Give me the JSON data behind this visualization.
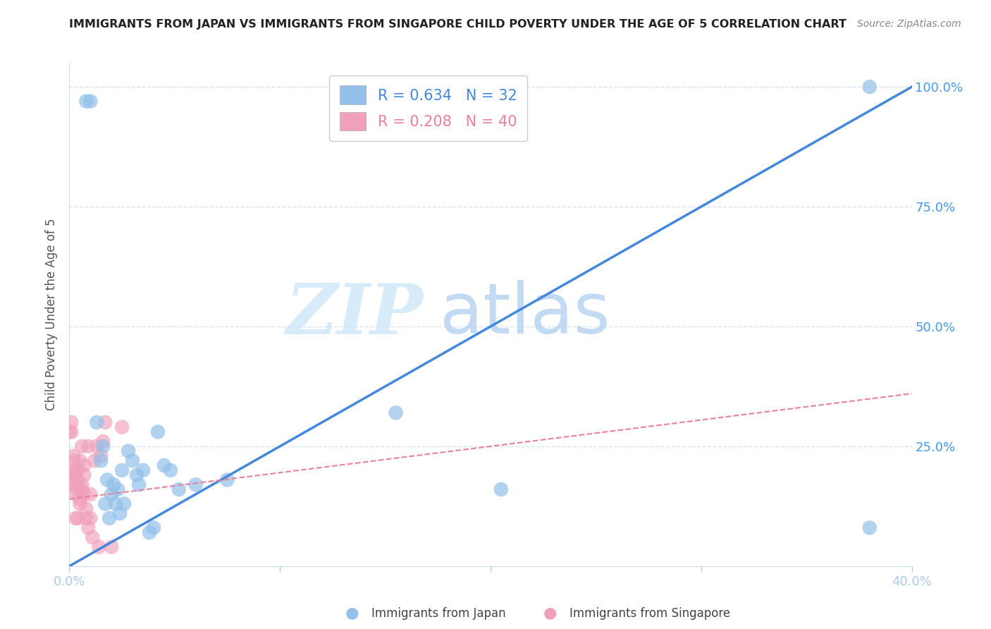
{
  "title": "IMMIGRANTS FROM JAPAN VS IMMIGRANTS FROM SINGAPORE CHILD POVERTY UNDER THE AGE OF 5 CORRELATION CHART",
  "source": "Source: ZipAtlas.com",
  "ylabel": "Child Poverty Under the Age of 5",
  "xlim": [
    0.0,
    0.4
  ],
  "ylim": [
    0.0,
    1.05
  ],
  "watermark_text": "ZIP",
  "watermark_text2": "atlas",
  "legend_japan_R": 0.634,
  "legend_japan_N": 32,
  "legend_singapore_R": 0.208,
  "legend_singapore_N": 40,
  "japan_color": "#92c0ea",
  "singapore_color": "#f0a0bb",
  "japan_line_color": "#4488dd",
  "singapore_line_color": "#e88099",
  "japan_line_x0": 0.0,
  "japan_line_y0": 0.0,
  "japan_line_x1": 0.4,
  "japan_line_y1": 1.0,
  "sing_line_x0": 0.0,
  "sing_line_y0": 0.14,
  "sing_line_x1": 0.4,
  "sing_line_y1": 0.36,
  "japan_x": [
    0.008,
    0.01,
    0.013,
    0.015,
    0.016,
    0.017,
    0.018,
    0.019,
    0.02,
    0.021,
    0.022,
    0.023,
    0.024,
    0.025,
    0.026,
    0.028,
    0.03,
    0.032,
    0.033,
    0.035,
    0.038,
    0.04,
    0.042,
    0.045,
    0.048,
    0.052,
    0.06,
    0.075,
    0.155,
    0.205,
    0.38,
    0.38
  ],
  "japan_y": [
    0.97,
    0.97,
    0.3,
    0.22,
    0.25,
    0.13,
    0.18,
    0.1,
    0.15,
    0.17,
    0.13,
    0.16,
    0.11,
    0.2,
    0.13,
    0.24,
    0.22,
    0.19,
    0.17,
    0.2,
    0.07,
    0.08,
    0.28,
    0.21,
    0.2,
    0.16,
    0.17,
    0.18,
    0.32,
    0.16,
    0.08,
    1.0
  ],
  "singapore_x": [
    0.0,
    0.001,
    0.001,
    0.001,
    0.002,
    0.002,
    0.002,
    0.002,
    0.003,
    0.003,
    0.003,
    0.003,
    0.004,
    0.004,
    0.004,
    0.004,
    0.005,
    0.005,
    0.005,
    0.006,
    0.006,
    0.006,
    0.007,
    0.007,
    0.007,
    0.008,
    0.008,
    0.009,
    0.009,
    0.01,
    0.01,
    0.011,
    0.012,
    0.013,
    0.014,
    0.015,
    0.016,
    0.017,
    0.02,
    0.025
  ],
  "singapore_y": [
    0.28,
    0.3,
    0.28,
    0.19,
    0.23,
    0.22,
    0.2,
    0.17,
    0.19,
    0.17,
    0.15,
    0.1,
    0.2,
    0.18,
    0.16,
    0.1,
    0.22,
    0.14,
    0.13,
    0.17,
    0.25,
    0.16,
    0.19,
    0.15,
    0.21,
    0.1,
    0.12,
    0.08,
    0.25,
    0.1,
    0.15,
    0.06,
    0.22,
    0.25,
    0.04,
    0.23,
    0.26,
    0.3,
    0.04,
    0.29
  ],
  "background_color": "#ffffff",
  "grid_color": "#d8e4ef",
  "title_color": "#222222",
  "axis_label_color": "#555555",
  "tick_color": "#4499ee"
}
